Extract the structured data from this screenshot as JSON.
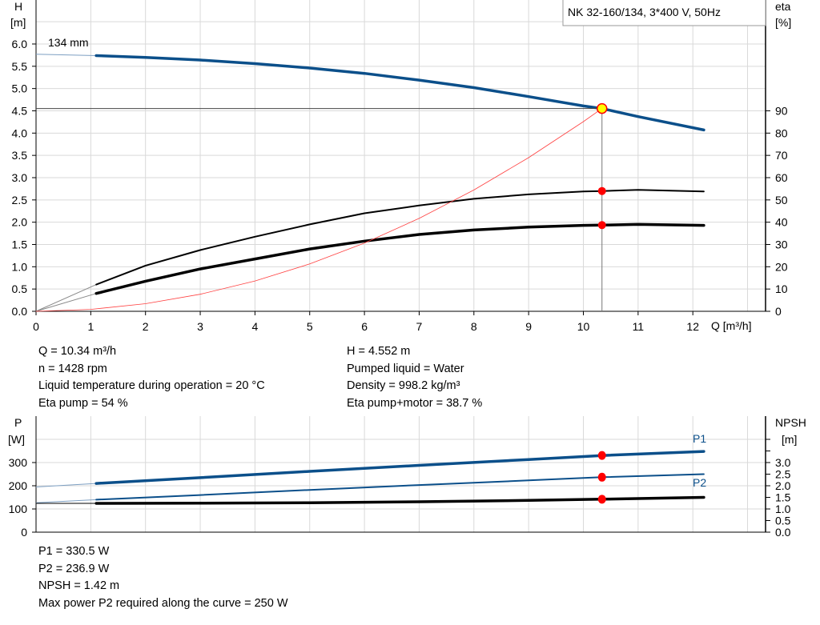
{
  "chart_data": [
    {
      "type": "line",
      "legend_box": "NK 32-160/134, 3*400 V, 50Hz",
      "xlabel": "Q [m³/h]",
      "ylabel_left": {
        "name": "H",
        "unit": "[m]"
      },
      "ylabel_right": {
        "name": "eta",
        "unit": "[%]"
      },
      "xlim": [
        0,
        13.3
      ],
      "ylim_left": [
        0,
        7.0
      ],
      "x_ticks": [
        "0",
        "1",
        "2",
        "3",
        "4",
        "5",
        "6",
        "7",
        "8",
        "9",
        "10",
        "11",
        "12"
      ],
      "y_ticks_left": [
        "0.0",
        "0.5",
        "1.0",
        "1.5",
        "2.0",
        "2.5",
        "3.0",
        "3.5",
        "4.0",
        "4.5",
        "5.0",
        "5.5",
        "6.0"
      ],
      "y_ticks_right": [
        "0",
        "10",
        "20",
        "30",
        "40",
        "50",
        "60",
        "70",
        "80",
        "90"
      ],
      "grid": true,
      "series": [
        {
          "key": "head",
          "name": "134 mm",
          "axis": "left",
          "color": "#0b4f8a",
          "extension": {
            "x": [
              0,
              1.1
            ],
            "y": [
              5.77,
              5.74
            ]
          },
          "x": [
            1.1,
            2,
            3,
            4,
            5,
            6,
            7,
            8,
            9,
            10,
            10.34,
            11,
            12.2
          ],
          "y": [
            5.74,
            5.7,
            5.64,
            5.56,
            5.46,
            5.34,
            5.19,
            5.02,
            4.82,
            4.61,
            4.552,
            4.37,
            4.07
          ]
        },
        {
          "key": "eta_pump",
          "axis": "right",
          "color": "#000000",
          "extension": {
            "x": [
              0,
              1.1
            ],
            "y": [
              0,
              12
            ]
          },
          "x": [
            1.1,
            2,
            3,
            4,
            5,
            6,
            7,
            8,
            9,
            10,
            10.34,
            11,
            12.2
          ],
          "y": [
            12,
            20.5,
            27.5,
            33.5,
            39,
            44,
            47.5,
            50.5,
            52.5,
            53.8,
            54,
            54.5,
            53.8
          ]
        },
        {
          "key": "eta_pump_motor",
          "axis": "right",
          "color": "#000000",
          "extension": {
            "x": [
              0,
              1.1
            ],
            "y": [
              0,
              8
            ]
          },
          "x": [
            1.1,
            2,
            3,
            4,
            5,
            6,
            7,
            8,
            9,
            10,
            10.34,
            11,
            12.2
          ],
          "y": [
            8,
            13.5,
            19,
            23.5,
            28,
            31.5,
            34.5,
            36.5,
            37.8,
            38.6,
            38.7,
            39,
            38.6
          ]
        },
        {
          "key": "system_curve",
          "axis": "left",
          "color": "#ff4040",
          "kind": "quadratic through origin",
          "x": [
            0,
            1,
            2,
            3,
            4,
            5,
            6,
            7,
            8,
            9,
            10,
            10.34
          ],
          "y": [
            0,
            0.043,
            0.17,
            0.383,
            0.681,
            1.064,
            1.533,
            2.086,
            2.724,
            3.448,
            4.257,
            4.552
          ]
        }
      ],
      "operating_point": {
        "Q": 10.34,
        "H": 4.552,
        "eta_pump": 54,
        "eta_pump_motor": 38.7
      }
    },
    {
      "type": "line",
      "ylabel_left": {
        "name": "P",
        "unit": "[W]"
      },
      "ylabel_right": {
        "name": "NPSH",
        "unit": "[m]"
      },
      "xlim": [
        0,
        13.3
      ],
      "ylim_left": [
        0,
        400
      ],
      "y_ticks_left": [
        "0",
        "100",
        "200",
        "300"
      ],
      "y_ticks_right": [
        "0.0",
        "0.5",
        "1.0",
        "1.5",
        "2.0",
        "2.5",
        "3.0"
      ],
      "grid": true,
      "series": [
        {
          "key": "p1",
          "name": "P1",
          "axis": "left",
          "color": "#0b4f8a",
          "extension": {
            "x": [
              0,
              1.1
            ],
            "y": [
              195,
              210
            ]
          },
          "x": [
            1.1,
            3,
            5,
            7,
            9,
            10.34,
            12.2
          ],
          "y": [
            210,
            235,
            262,
            288,
            313,
            330.5,
            348
          ]
        },
        {
          "key": "p2",
          "name": "P2",
          "axis": "left",
          "color": "#0b4f8a",
          "extension": {
            "x": [
              0,
              1.1
            ],
            "y": [
              127,
              140
            ]
          },
          "x": [
            1.1,
            3,
            5,
            7,
            9,
            10.34,
            12.2
          ],
          "y": [
            140,
            160,
            182,
            203,
            223,
            236.9,
            250
          ]
        },
        {
          "key": "npsh",
          "axis": "right",
          "color": "#000000",
          "extension": {
            "x": [
              0,
              1.1
            ],
            "y": [
              1.24,
              1.24
            ]
          },
          "x": [
            1.1,
            3,
            5,
            7,
            9,
            10.34,
            12.2
          ],
          "y": [
            1.24,
            1.25,
            1.27,
            1.31,
            1.37,
            1.42,
            1.5
          ]
        }
      ],
      "operating_point": {
        "Q": 10.34,
        "P1": 330.5,
        "P2": 236.9,
        "NPSH": 1.42
      }
    }
  ],
  "info_top": {
    "left": [
      "Q = 10.34 m³/h",
      "n = 1428 rpm",
      "Liquid temperature during operation = 20 °C",
      "Eta pump = 54 %"
    ],
    "right": [
      "H = 4.552 m",
      "Pumped liquid = Water",
      "Density = 998.2 kg/m³",
      "Eta pump+motor = 38.7 %"
    ]
  },
  "info_bottom": [
    "P1 = 330.5 W",
    "P2 = 236.9 W",
    "NPSH = 1.42 m",
    "Max power P2 required along the curve = 250 W"
  ],
  "colors": {
    "grid": "#d9d9d9",
    "blue": "#0b4f8a",
    "red": "#ff0000",
    "op_fill": "#ffff00"
  }
}
